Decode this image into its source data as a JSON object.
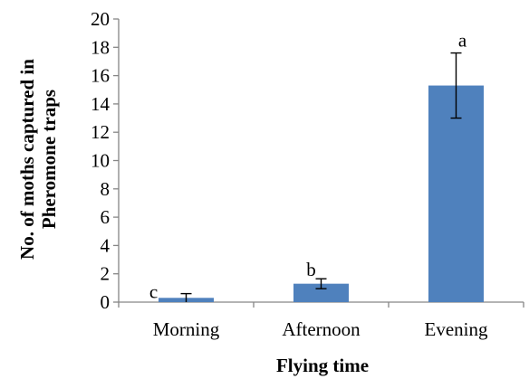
{
  "chart_data": {
    "type": "bar",
    "categories": [
      "Morning",
      "Afternoon",
      "Evening"
    ],
    "values": [
      0.3,
      1.3,
      15.3
    ],
    "errors": [
      0.3,
      0.35,
      2.3
    ],
    "significance_letters": [
      "c",
      "b",
      "a"
    ],
    "xlabel": "Flying time",
    "ylabel_lines": [
      "No. of moths captured in",
      "Pheromone traps"
    ],
    "ylim": [
      0,
      20
    ],
    "yticks": [
      0,
      2,
      4,
      6,
      8,
      10,
      12,
      14,
      16,
      18,
      20
    ],
    "grid": false,
    "bar_color": "#4f81bd",
    "axis_color": "#868686"
  }
}
